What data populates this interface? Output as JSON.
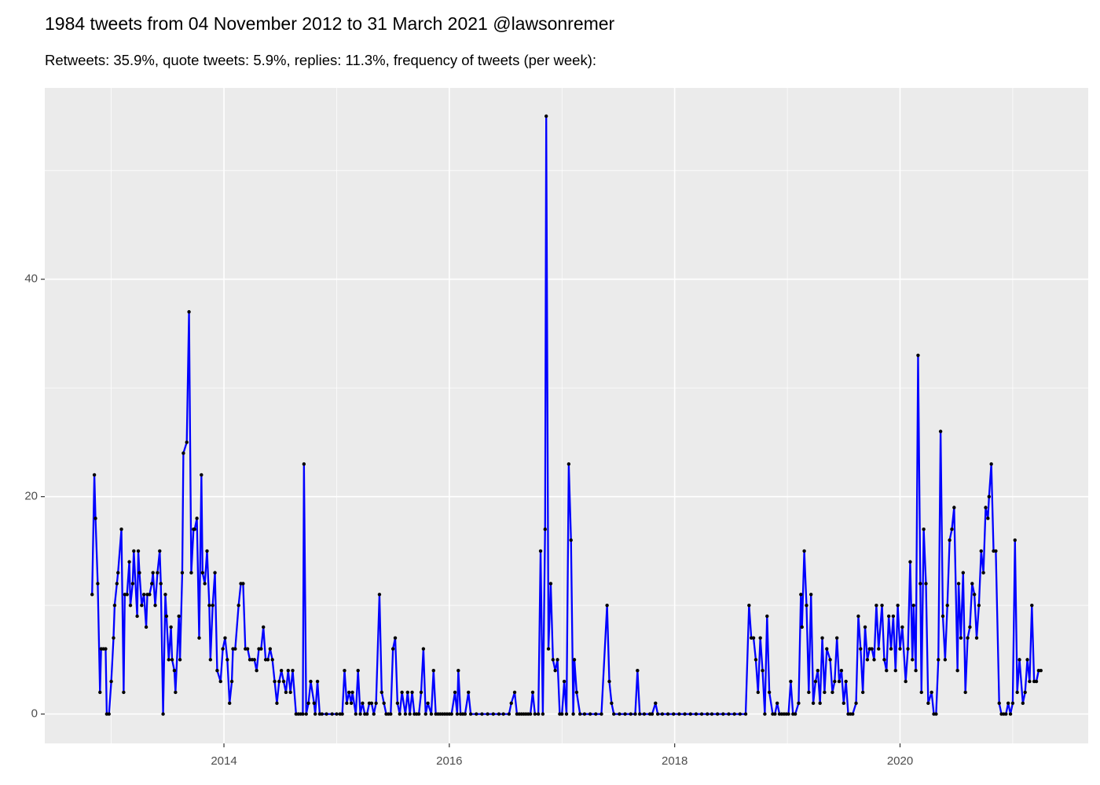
{
  "chart_data": {
    "type": "line",
    "title": "1984 tweets from 04 November 2012 to 31 March 2021 @lawsonremer",
    "subtitle": "Retweets: 35.9%, quote tweets: 5.9%, replies: 11.3%, frequency of tweets (per week):",
    "color": "#0000FF",
    "point_color": "#000000",
    "panel_color": "#EBEBEB",
    "grid": true,
    "xlim": [
      2012.41,
      2021.67
    ],
    "ylim": [
      -2.7,
      57.6
    ],
    "xticks": [
      2014,
      2016,
      2018,
      2020
    ],
    "yticks": [
      0,
      20,
      40
    ],
    "x": [
      2012.83,
      2012.85,
      2012.86,
      2012.88,
      2012.9,
      2012.91,
      2012.93,
      2012.95,
      2012.96,
      2012.98,
      2013.0,
      2013.02,
      2013.03,
      2013.05,
      2013.06,
      2013.09,
      2013.11,
      2013.12,
      2013.14,
      2013.16,
      2013.17,
      2013.19,
      2013.2,
      2013.23,
      2013.24,
      2013.25,
      2013.27,
      2013.29,
      2013.31,
      2013.32,
      2013.34,
      2013.36,
      2013.37,
      2013.39,
      2013.41,
      2013.43,
      2013.44,
      2013.46,
      2013.48,
      2013.49,
      2013.51,
      2013.53,
      2013.54,
      2013.56,
      2013.57,
      2013.6,
      2013.61,
      2013.63,
      2013.64,
      2013.67,
      2013.69,
      2013.71,
      2013.73,
      2013.74,
      2013.76,
      2013.78,
      2013.8,
      2013.81,
      2013.83,
      2013.85,
      2013.87,
      2013.88,
      2013.9,
      2013.92,
      2013.94,
      2013.97,
      2013.99,
      2014.01,
      2014.03,
      2014.05,
      2014.07,
      2014.08,
      2014.1,
      2014.13,
      2014.15,
      2014.17,
      2014.19,
      2014.21,
      2014.23,
      2014.25,
      2014.27,
      2014.29,
      2014.31,
      2014.33,
      2014.35,
      2014.37,
      2014.39,
      2014.41,
      2014.43,
      2014.45,
      2014.47,
      2014.49,
      2014.51,
      2014.53,
      2014.55,
      2014.57,
      2014.59,
      2014.61,
      2014.64,
      2014.66,
      2014.68,
      2014.7,
      2014.71,
      2014.73,
      2014.75,
      2014.77,
      2014.8,
      2014.81,
      2014.83,
      2014.85,
      2014.87,
      2014.91,
      2014.96,
      2015.0,
      2015.03,
      2015.05,
      2015.07,
      2015.09,
      2015.11,
      2015.13,
      2015.14,
      2015.17,
      2015.19,
      2015.21,
      2015.23,
      2015.25,
      2015.27,
      2015.29,
      2015.31,
      2015.33,
      2015.35,
      2015.38,
      2015.4,
      2015.42,
      2015.44,
      2015.46,
      2015.48,
      2015.5,
      2015.52,
      2015.54,
      2015.56,
      2015.58,
      2015.61,
      2015.63,
      2015.65,
      2015.67,
      2015.69,
      2015.71,
      2015.73,
      2015.75,
      2015.77,
      2015.79,
      2015.81,
      2015.84,
      2015.86,
      2015.88,
      2015.9,
      2015.92,
      2015.94,
      2015.96,
      2015.98,
      2016.0,
      2016.02,
      2016.05,
      2016.07,
      2016.08,
      2016.1,
      2016.12,
      2016.14,
      2016.17,
      2016.19,
      2016.24,
      2016.29,
      2016.34,
      2016.39,
      2016.44,
      2016.48,
      2016.53,
      2016.55,
      2016.58,
      2016.6,
      2016.62,
      2016.64,
      2016.66,
      2016.68,
      2016.7,
      2016.72,
      2016.74,
      2016.76,
      2016.79,
      2016.81,
      2016.83,
      2016.85,
      2016.86,
      2016.88,
      2016.9,
      2016.92,
      2016.94,
      2016.96,
      2016.98,
      2017.0,
      2017.02,
      2017.04,
      2017.06,
      2017.08,
      2017.1,
      2017.11,
      2017.13,
      2017.16,
      2017.2,
      2017.25,
      2017.3,
      2017.35,
      2017.4,
      2017.42,
      2017.44,
      2017.46,
      2017.51,
      2017.56,
      2017.61,
      2017.65,
      2017.67,
      2017.69,
      2017.73,
      2017.78,
      2017.8,
      2017.83,
      2017.85,
      2017.89,
      2017.94,
      2017.99,
      2018.04,
      2018.09,
      2018.14,
      2018.19,
      2018.24,
      2018.29,
      2018.33,
      2018.38,
      2018.43,
      2018.48,
      2018.53,
      2018.58,
      2018.63,
      2018.66,
      2018.68,
      2018.7,
      2018.72,
      2018.74,
      2018.76,
      2018.78,
      2018.8,
      2018.82,
      2018.84,
      2018.87,
      2018.89,
      2018.91,
      2018.93,
      2018.95,
      2018.97,
      2018.99,
      2019.01,
      2019.03,
      2019.05,
      2019.07,
      2019.1,
      2019.12,
      2019.13,
      2019.15,
      2019.17,
      2019.19,
      2019.21,
      2019.23,
      2019.25,
      2019.27,
      2019.29,
      2019.31,
      2019.33,
      2019.35,
      2019.38,
      2019.4,
      2019.42,
      2019.44,
      2019.46,
      2019.48,
      2019.5,
      2019.52,
      2019.54,
      2019.56,
      2019.58,
      2019.61,
      2019.63,
      2019.65,
      2019.67,
      2019.69,
      2019.71,
      2019.73,
      2019.75,
      2019.77,
      2019.79,
      2019.81,
      2019.84,
      2019.86,
      2019.88,
      2019.9,
      2019.92,
      2019.94,
      2019.96,
      2019.98,
      2020.0,
      2020.02,
      2020.05,
      2020.07,
      2020.09,
      2020.11,
      2020.12,
      2020.14,
      2020.16,
      2020.18,
      2020.19,
      2020.21,
      2020.23,
      2020.25,
      2020.28,
      2020.3,
      2020.32,
      2020.34,
      2020.36,
      2020.38,
      2020.4,
      2020.42,
      2020.44,
      2020.46,
      2020.48,
      2020.51,
      2020.52,
      2020.54,
      2020.56,
      2020.58,
      2020.6,
      2020.62,
      2020.64,
      2020.66,
      2020.68,
      2020.7,
      2020.72,
      2020.74,
      2020.76,
      2020.78,
      2020.79,
      2020.81,
      2020.83,
      2020.85,
      2020.88,
      2020.9,
      2020.92,
      2020.94,
      2020.96,
      2020.98,
      2021.0,
      2021.02,
      2021.04,
      2021.06,
      2021.09,
      2021.11,
      2021.13,
      2021.15,
      2021.17,
      2021.19,
      2021.21,
      2021.23,
      2021.25
    ],
    "values": [
      11,
      22,
      18,
      12,
      2,
      6,
      6,
      6,
      0,
      0,
      3,
      7,
      10,
      12,
      13,
      17,
      2,
      11,
      11,
      14,
      10,
      12,
      15,
      9,
      15,
      13,
      10,
      11,
      8,
      11,
      11,
      12,
      13,
      10,
      13,
      15,
      12,
      0,
      11,
      9,
      5,
      8,
      5,
      4,
      2,
      9,
      5,
      13,
      24,
      25,
      37,
      13,
      17,
      17,
      18,
      7,
      22,
      13,
      12,
      15,
      10,
      5,
      10,
      13,
      4,
      3,
      6,
      7,
      5,
      1,
      3,
      6,
      6,
      10,
      12,
      12,
      6,
      6,
      5,
      5,
      5,
      4,
      6,
      6,
      8,
      5,
      5,
      6,
      5,
      3,
      1,
      3,
      4,
      3,
      2,
      4,
      2,
      4,
      0,
      0,
      0,
      0,
      23,
      0,
      1,
      3,
      1,
      0,
      3,
      0,
      0,
      0,
      0,
      0,
      0,
      0,
      4,
      1,
      2,
      1,
      2,
      0,
      4,
      0,
      1,
      0,
      0,
      1,
      1,
      0,
      1,
      11,
      2,
      1,
      0,
      0,
      0,
      6,
      7,
      1,
      0,
      2,
      0,
      2,
      0,
      2,
      0,
      0,
      0,
      2,
      6,
      0,
      1,
      0,
      4,
      0,
      0,
      0,
      0,
      0,
      0,
      0,
      0,
      2,
      0,
      4,
      0,
      0,
      0,
      2,
      0,
      0,
      0,
      0,
      0,
      0,
      0,
      0,
      1,
      2,
      0,
      0,
      0,
      0,
      0,
      0,
      0,
      2,
      0,
      0,
      15,
      0,
      17,
      55,
      6,
      12,
      5,
      4,
      5,
      0,
      0,
      3,
      0,
      23,
      16,
      0,
      5,
      2,
      0,
      0,
      0,
      0,
      0,
      10,
      3,
      1,
      0,
      0,
      0,
      0,
      0,
      4,
      0,
      0,
      0,
      0,
      1,
      0,
      0,
      0,
      0,
      0,
      0,
      0,
      0,
      0,
      0,
      0,
      0,
      0,
      0,
      0,
      0,
      0,
      10,
      7,
      7,
      5,
      2,
      7,
      4,
      0,
      9,
      2,
      0,
      0,
      1,
      0,
      0,
      0,
      0,
      0,
      3,
      0,
      0,
      1,
      11,
      8,
      15,
      10,
      2,
      11,
      1,
      3,
      4,
      1,
      7,
      2,
      6,
      5,
      2,
      3,
      7,
      3,
      4,
      1,
      3,
      0,
      0,
      0,
      1,
      9,
      6,
      2,
      8,
      5,
      6,
      6,
      5,
      10,
      6,
      10,
      5,
      4,
      9,
      6,
      9,
      4,
      10,
      6,
      8,
      3,
      6,
      14,
      5,
      10,
      4,
      33,
      12,
      2,
      17,
      12,
      1,
      2,
      0,
      0,
      5,
      26,
      9,
      5,
      10,
      16,
      17,
      19,
      4,
      12,
      7,
      13,
      2,
      7,
      8,
      12,
      11,
      7,
      10,
      15,
      13,
      19,
      18,
      20,
      23,
      15,
      15,
      1,
      0,
      0,
      0,
      1,
      0,
      1,
      16,
      2,
      5,
      1,
      2,
      5,
      3,
      10,
      3,
      3,
      4,
      4
    ]
  }
}
